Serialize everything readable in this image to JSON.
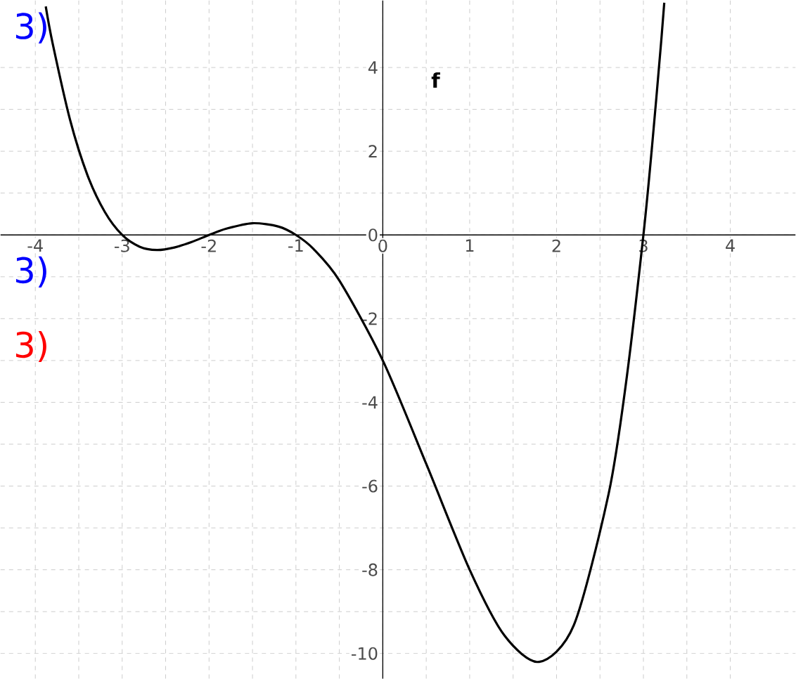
{
  "chart_data": {
    "type": "line",
    "xlim": [
      -4.4,
      4.75
    ],
    "ylim": [
      -10.6,
      5.6
    ],
    "xticks": [
      -4,
      -3,
      -2,
      -1,
      0,
      1,
      2,
      3,
      4
    ],
    "yticks": [
      -10,
      -8,
      -6,
      -4,
      -2,
      0,
      2,
      4
    ],
    "grid": true,
    "marker": "none",
    "line_style": "solid",
    "series": [
      {
        "name": "f",
        "color": "#000000",
        "x": [
          -3.88,
          -3.8,
          -3.6,
          -3.4,
          -3.2,
          -3,
          -2.8,
          -2.6,
          -2.4,
          -2.2,
          -2,
          -1.8,
          -1.5,
          -1.2,
          -1,
          -0.8,
          -0.5,
          0,
          0.5,
          1,
          1.4,
          1.8,
          2.2,
          2.6,
          2.8,
          3,
          3.1,
          3.2,
          3.24
        ],
        "values": [
          5.46,
          4.57,
          2.75,
          1.43,
          0.55,
          0,
          -0.28,
          -0.36,
          -0.3,
          -0.17,
          0,
          0.15,
          0.28,
          0.2,
          0,
          -0.33,
          -1.09,
          -3,
          -5.47,
          -8,
          -9.57,
          -10.2,
          -9.32,
          -6.18,
          -3.53,
          0,
          2.13,
          4.51,
          5.55
        ]
      }
    ],
    "annotations": [
      "3)",
      "3)",
      "3)"
    ]
  }
}
